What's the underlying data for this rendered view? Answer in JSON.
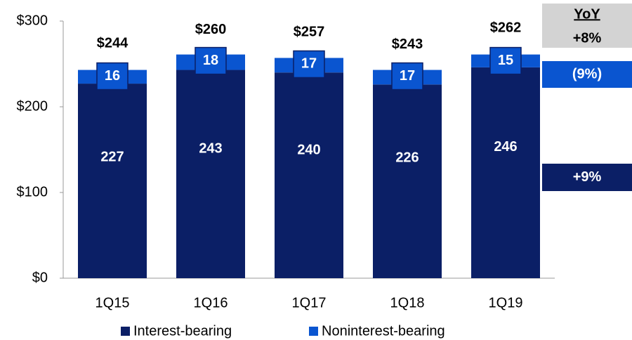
{
  "chart_data": {
    "type": "stacked_bar",
    "categories": [
      "1Q15",
      "1Q16",
      "1Q17",
      "1Q18",
      "1Q19"
    ],
    "series": [
      {
        "name": "Interest-bearing",
        "color": "#0b1f66",
        "values": [
          227,
          243,
          240,
          226,
          246
        ]
      },
      {
        "name": "Noninterest-bearing",
        "color": "#0a55d0",
        "values": [
          16,
          18,
          17,
          17,
          15
        ]
      }
    ],
    "totals": {
      "values": [
        244,
        260,
        257,
        243,
        262
      ],
      "value_labels": [
        "$244",
        "$260",
        "$257",
        "$243",
        "$262"
      ]
    },
    "ylim": [
      0,
      300
    ],
    "yticks": [
      {
        "value": 0,
        "label": "$0"
      },
      {
        "value": 100,
        "label": "$100"
      },
      {
        "value": 200,
        "label": "$200"
      },
      {
        "value": 300,
        "label": "$300"
      }
    ],
    "legend": "bottom",
    "yoy": {
      "title": "YoY",
      "total": "+8%",
      "series": [
        "+9%",
        "(9%)"
      ]
    }
  }
}
